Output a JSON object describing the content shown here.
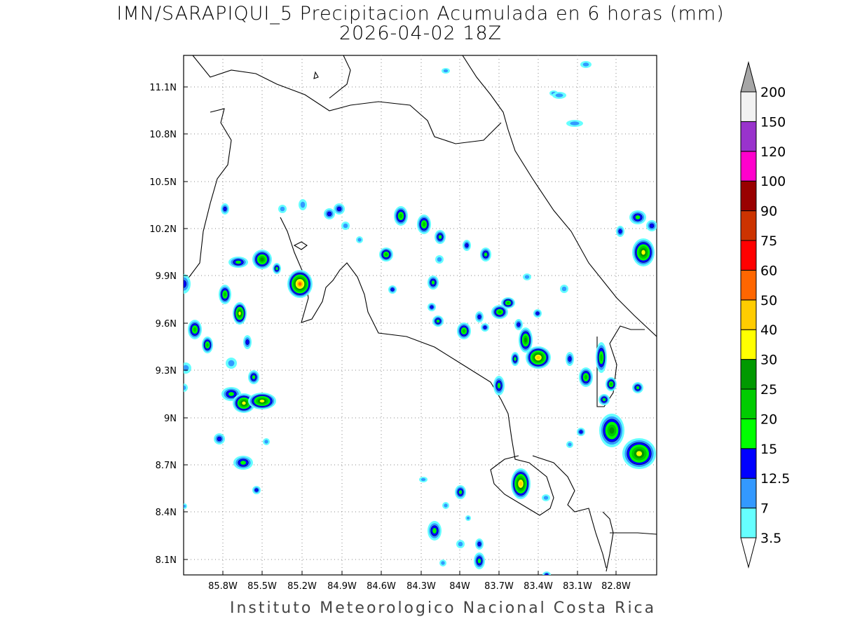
{
  "title": {
    "line1": "IMN/SARAPIQUI_5 Precipitacion Acumulada en 6 horas (mm)",
    "line2": "2026-04-02 18Z"
  },
  "footer": "Instituto Meteorologico Nacional Costa Rica",
  "map": {
    "lon_range": [
      -86.05,
      -82.55
    ],
    "lat_range": [
      8.0,
      11.3
    ],
    "lon_ticks": [
      "85.8W",
      "85.5W",
      "85.2W",
      "84.9W",
      "84.6W",
      "84.3W",
      "84W",
      "83.7W",
      "83.4W",
      "83.1W",
      "82.8W"
    ],
    "lat_ticks": [
      "8.1N",
      "8.4N",
      "8.7N",
      "9N",
      "9.3N",
      "9.6N",
      "9.9N",
      "10.2N",
      "10.5N",
      "10.8N",
      "11.1N"
    ],
    "grid": true
  },
  "colorbar": {
    "labels": [
      "3.5",
      "7",
      "12.5",
      "15",
      "20",
      "25",
      "30",
      "40",
      "50",
      "60",
      "75",
      "90",
      "100",
      "120",
      "150",
      "200"
    ],
    "colors": [
      "#66ffff",
      "#3399ff",
      "#0000ff",
      "#00ff00",
      "#00cc00",
      "#009900",
      "#ffff00",
      "#ffcc00",
      "#ff6600",
      "#ff0000",
      "#cc3300",
      "#990000",
      "#ff00cc",
      "#9933cc",
      "#f2f2f2",
      "#a6a6a6"
    ]
  }
}
